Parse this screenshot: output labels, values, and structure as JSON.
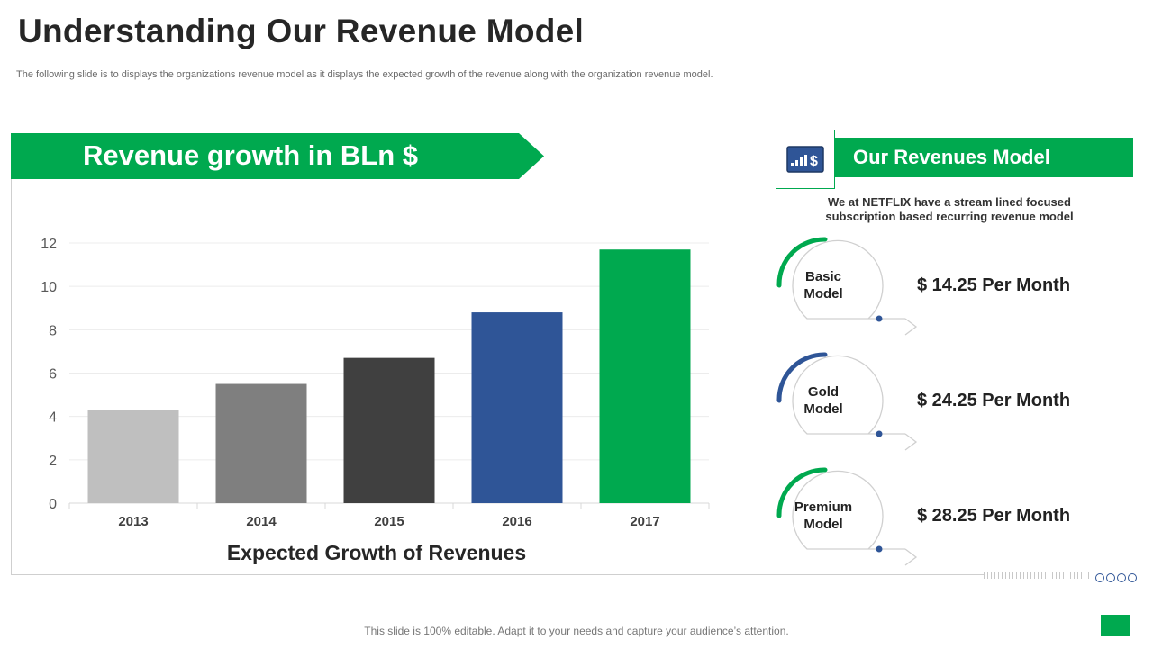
{
  "slide": {
    "title": "Understanding Our Revenue Model",
    "subtitle": "The following slide is to displays the organizations revenue model as it displays the expected growth of the revenue along with the organization revenue model.",
    "footer": "This slide is 100% editable. Adapt it to your needs and capture your audience’s attention."
  },
  "chart_banner": "Revenue growth in BLn $",
  "chart_data": {
    "type": "bar",
    "title": "Revenue growth in BLn $",
    "xlabel": "Expected Growth of Revenues",
    "ylabel": "",
    "categories": [
      "2013",
      "2014",
      "2015",
      "2016",
      "2017"
    ],
    "values": [
      4.3,
      5.5,
      6.7,
      8.8,
      11.7
    ],
    "colors": [
      "#bfbfbf",
      "#7f7f7f",
      "#404040",
      "#2f5597",
      "#00a94f"
    ],
    "ylim": [
      0,
      12
    ],
    "yticks": [
      0,
      2,
      4,
      6,
      8,
      10,
      12
    ],
    "grid": true
  },
  "revenue_model": {
    "heading": "Our Revenues Model",
    "icon": "dollar-chart-icon",
    "description": "We at NETFLIX have a stream lined focused subscription based recurring revenue model",
    "plans": [
      {
        "name_line1": "Basic",
        "name_line2": "Model",
        "price": "$ 14.25 Per Month",
        "accent": "#00a94f"
      },
      {
        "name_line1": "Gold",
        "name_line2": "Model",
        "price": "$ 24.25 Per Month",
        "accent": "#2f5597"
      },
      {
        "name_line1": "Premium",
        "name_line2": "Model",
        "price": "$ 28.25 Per Month",
        "accent": "#00a94f"
      }
    ]
  },
  "colors": {
    "brand_green": "#00a94f",
    "brand_blue": "#2f5597"
  }
}
